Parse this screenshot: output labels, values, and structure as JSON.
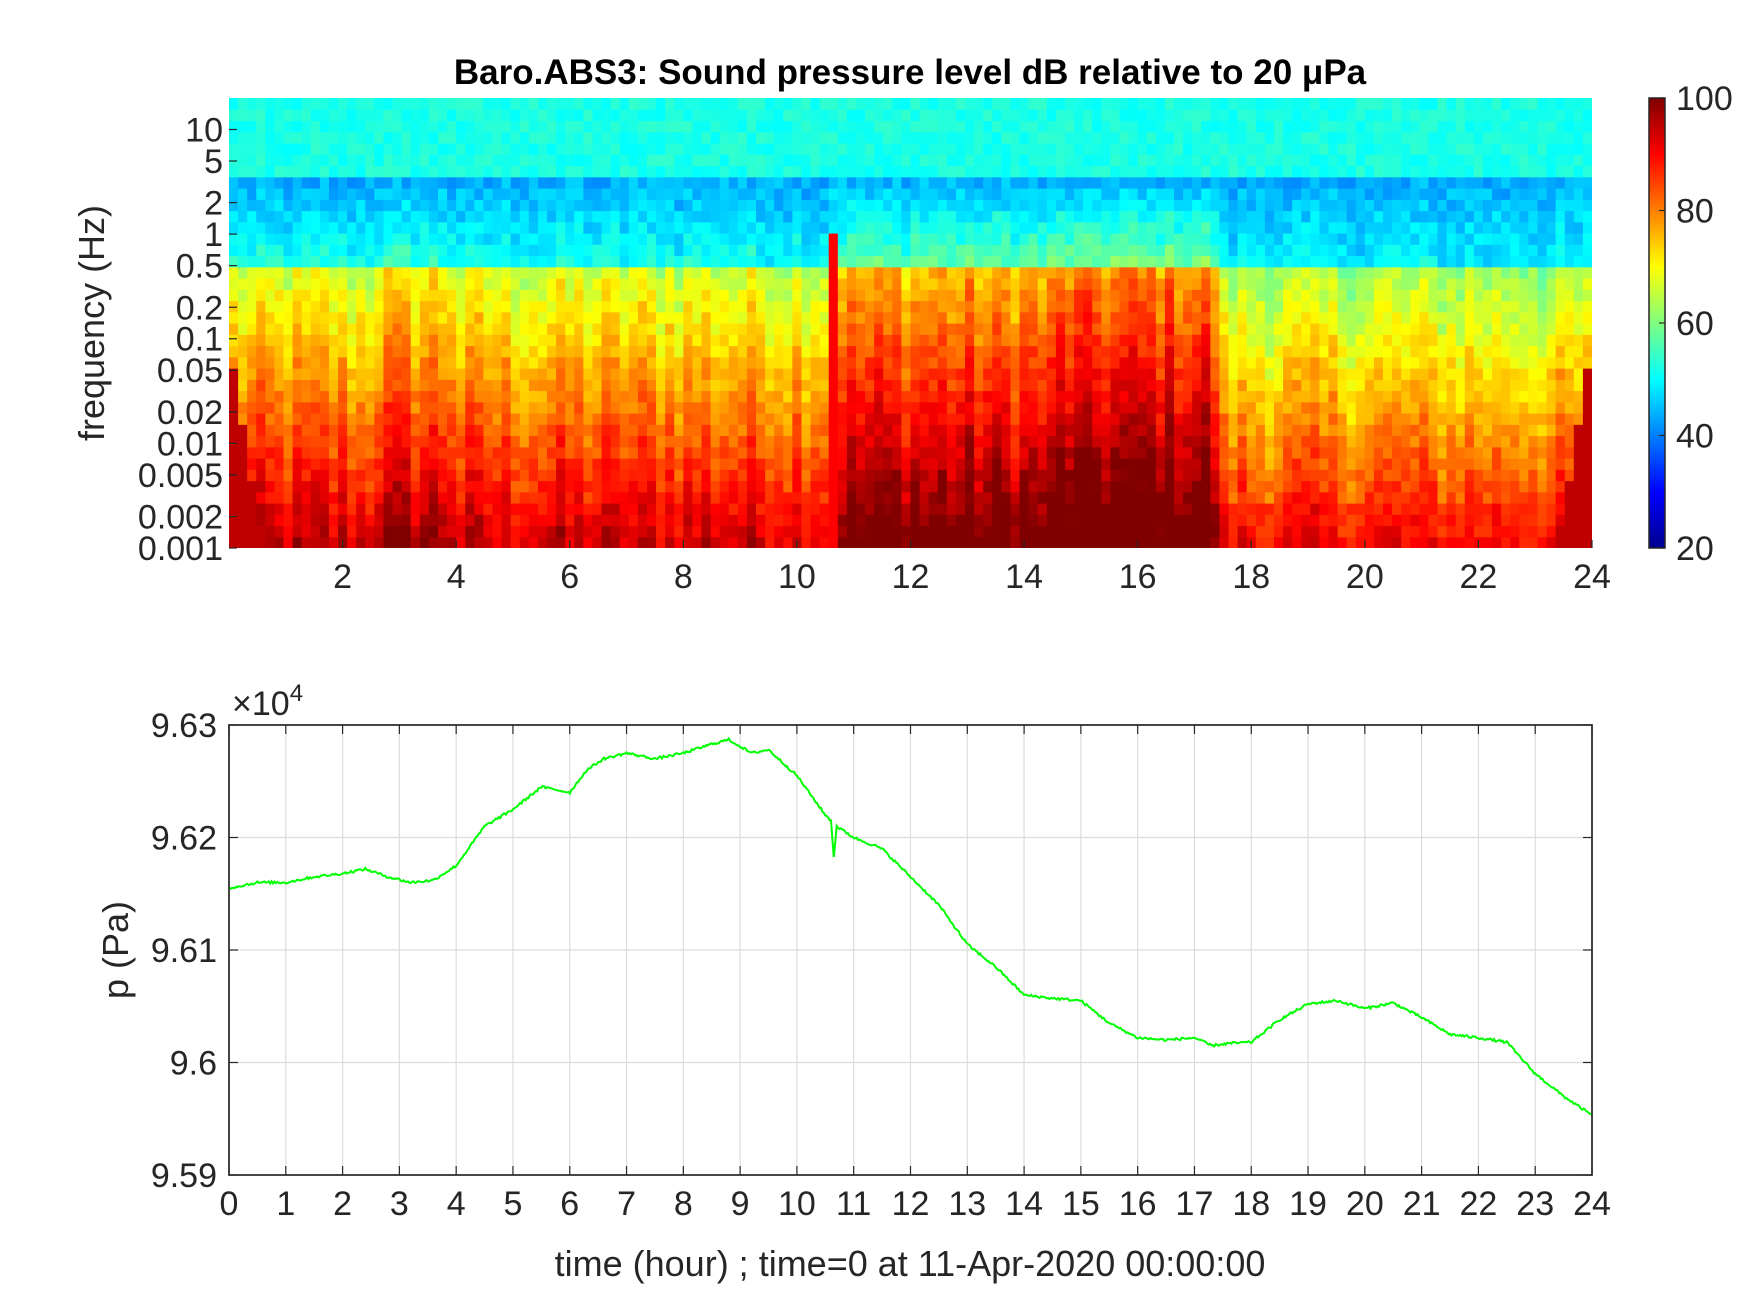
{
  "figure_title": "Baro.ABS3: Sound pressure level dB relative to 20 μPa",
  "chart_data": [
    {
      "type": "heatmap",
      "title": "Baro.ABS3: Sound pressure level dB relative to 20 μPa",
      "ylabel": "frequency (Hz)",
      "xlim": [
        0,
        24
      ],
      "ylim": [
        0.001,
        20
      ],
      "y_scale": "log",
      "x_ticks": [
        "2",
        "4",
        "6",
        "8",
        "10",
        "12",
        "14",
        "16",
        "18",
        "20",
        "22",
        "24"
      ],
      "y_ticks": [
        "0.001",
        "0.002",
        "0.005",
        "0.01",
        "0.02",
        "0.05",
        "0.1",
        "0.2",
        "0.5",
        "1",
        "2",
        "5",
        "10"
      ],
      "colorbar": {
        "min": 20,
        "max": 100,
        "ticks": [
          "20",
          "40",
          "60",
          "80",
          "100"
        ],
        "colormap": "jet"
      },
      "colors": {
        "background": "#00ffff"
      }
    },
    {
      "type": "line",
      "xlabel": "time (hour) ; time=0 at 11-Apr-2020 00:00:00",
      "ylabel": "p (Pa)",
      "xlim": [
        0,
        24
      ],
      "ylim": [
        95900,
        96300
      ],
      "y_exponent_label": "×10",
      "y_exponent_power": "4",
      "grid": true,
      "x_ticks": [
        "0",
        "1",
        "2",
        "3",
        "4",
        "5",
        "6",
        "7",
        "8",
        "9",
        "10",
        "11",
        "12",
        "13",
        "14",
        "15",
        "16",
        "17",
        "18",
        "19",
        "20",
        "21",
        "22",
        "23",
        "24"
      ],
      "y_ticks": [
        "9.59",
        "9.6",
        "9.61",
        "9.62",
        "9.63"
      ],
      "y_tick_values": [
        95900,
        96000,
        96100,
        96200,
        96300
      ],
      "line_color": "#00ff00",
      "x": [
        0,
        0.5,
        1,
        1.5,
        2,
        2.4,
        2.8,
        3.2,
        3.6,
        4,
        4.5,
        5,
        5.5,
        6,
        6.3,
        6.6,
        7,
        7.5,
        8,
        8.5,
        8.8,
        9.2,
        9.5,
        10,
        10.5,
        10.6,
        10.65,
        10.7,
        11,
        11.5,
        12,
        12.5,
        13,
        13.5,
        14,
        14.5,
        15,
        15.5,
        16,
        16.5,
        17,
        17.3,
        17.6,
        18,
        18.5,
        19,
        19.5,
        20,
        20.5,
        21,
        21.5,
        22,
        22.5,
        23,
        23.5,
        24
      ],
      "y": [
        96155,
        96160,
        96160,
        96165,
        96168,
        96172,
        96165,
        96160,
        96162,
        96175,
        96210,
        96225,
        96245,
        96240,
        96260,
        96270,
        96275,
        96270,
        96275,
        96283,
        96287,
        96275,
        96278,
        96255,
        96220,
        96215,
        96183,
        96210,
        96200,
        96190,
        96165,
        96140,
        96105,
        96085,
        96060,
        96057,
        96055,
        96035,
        96022,
        96020,
        96022,
        96015,
        96017,
        96018,
        96038,
        96052,
        96055,
        96048,
        96053,
        96040,
        96025,
        96022,
        96018,
        95990,
        95970,
        95953
      ]
    }
  ]
}
